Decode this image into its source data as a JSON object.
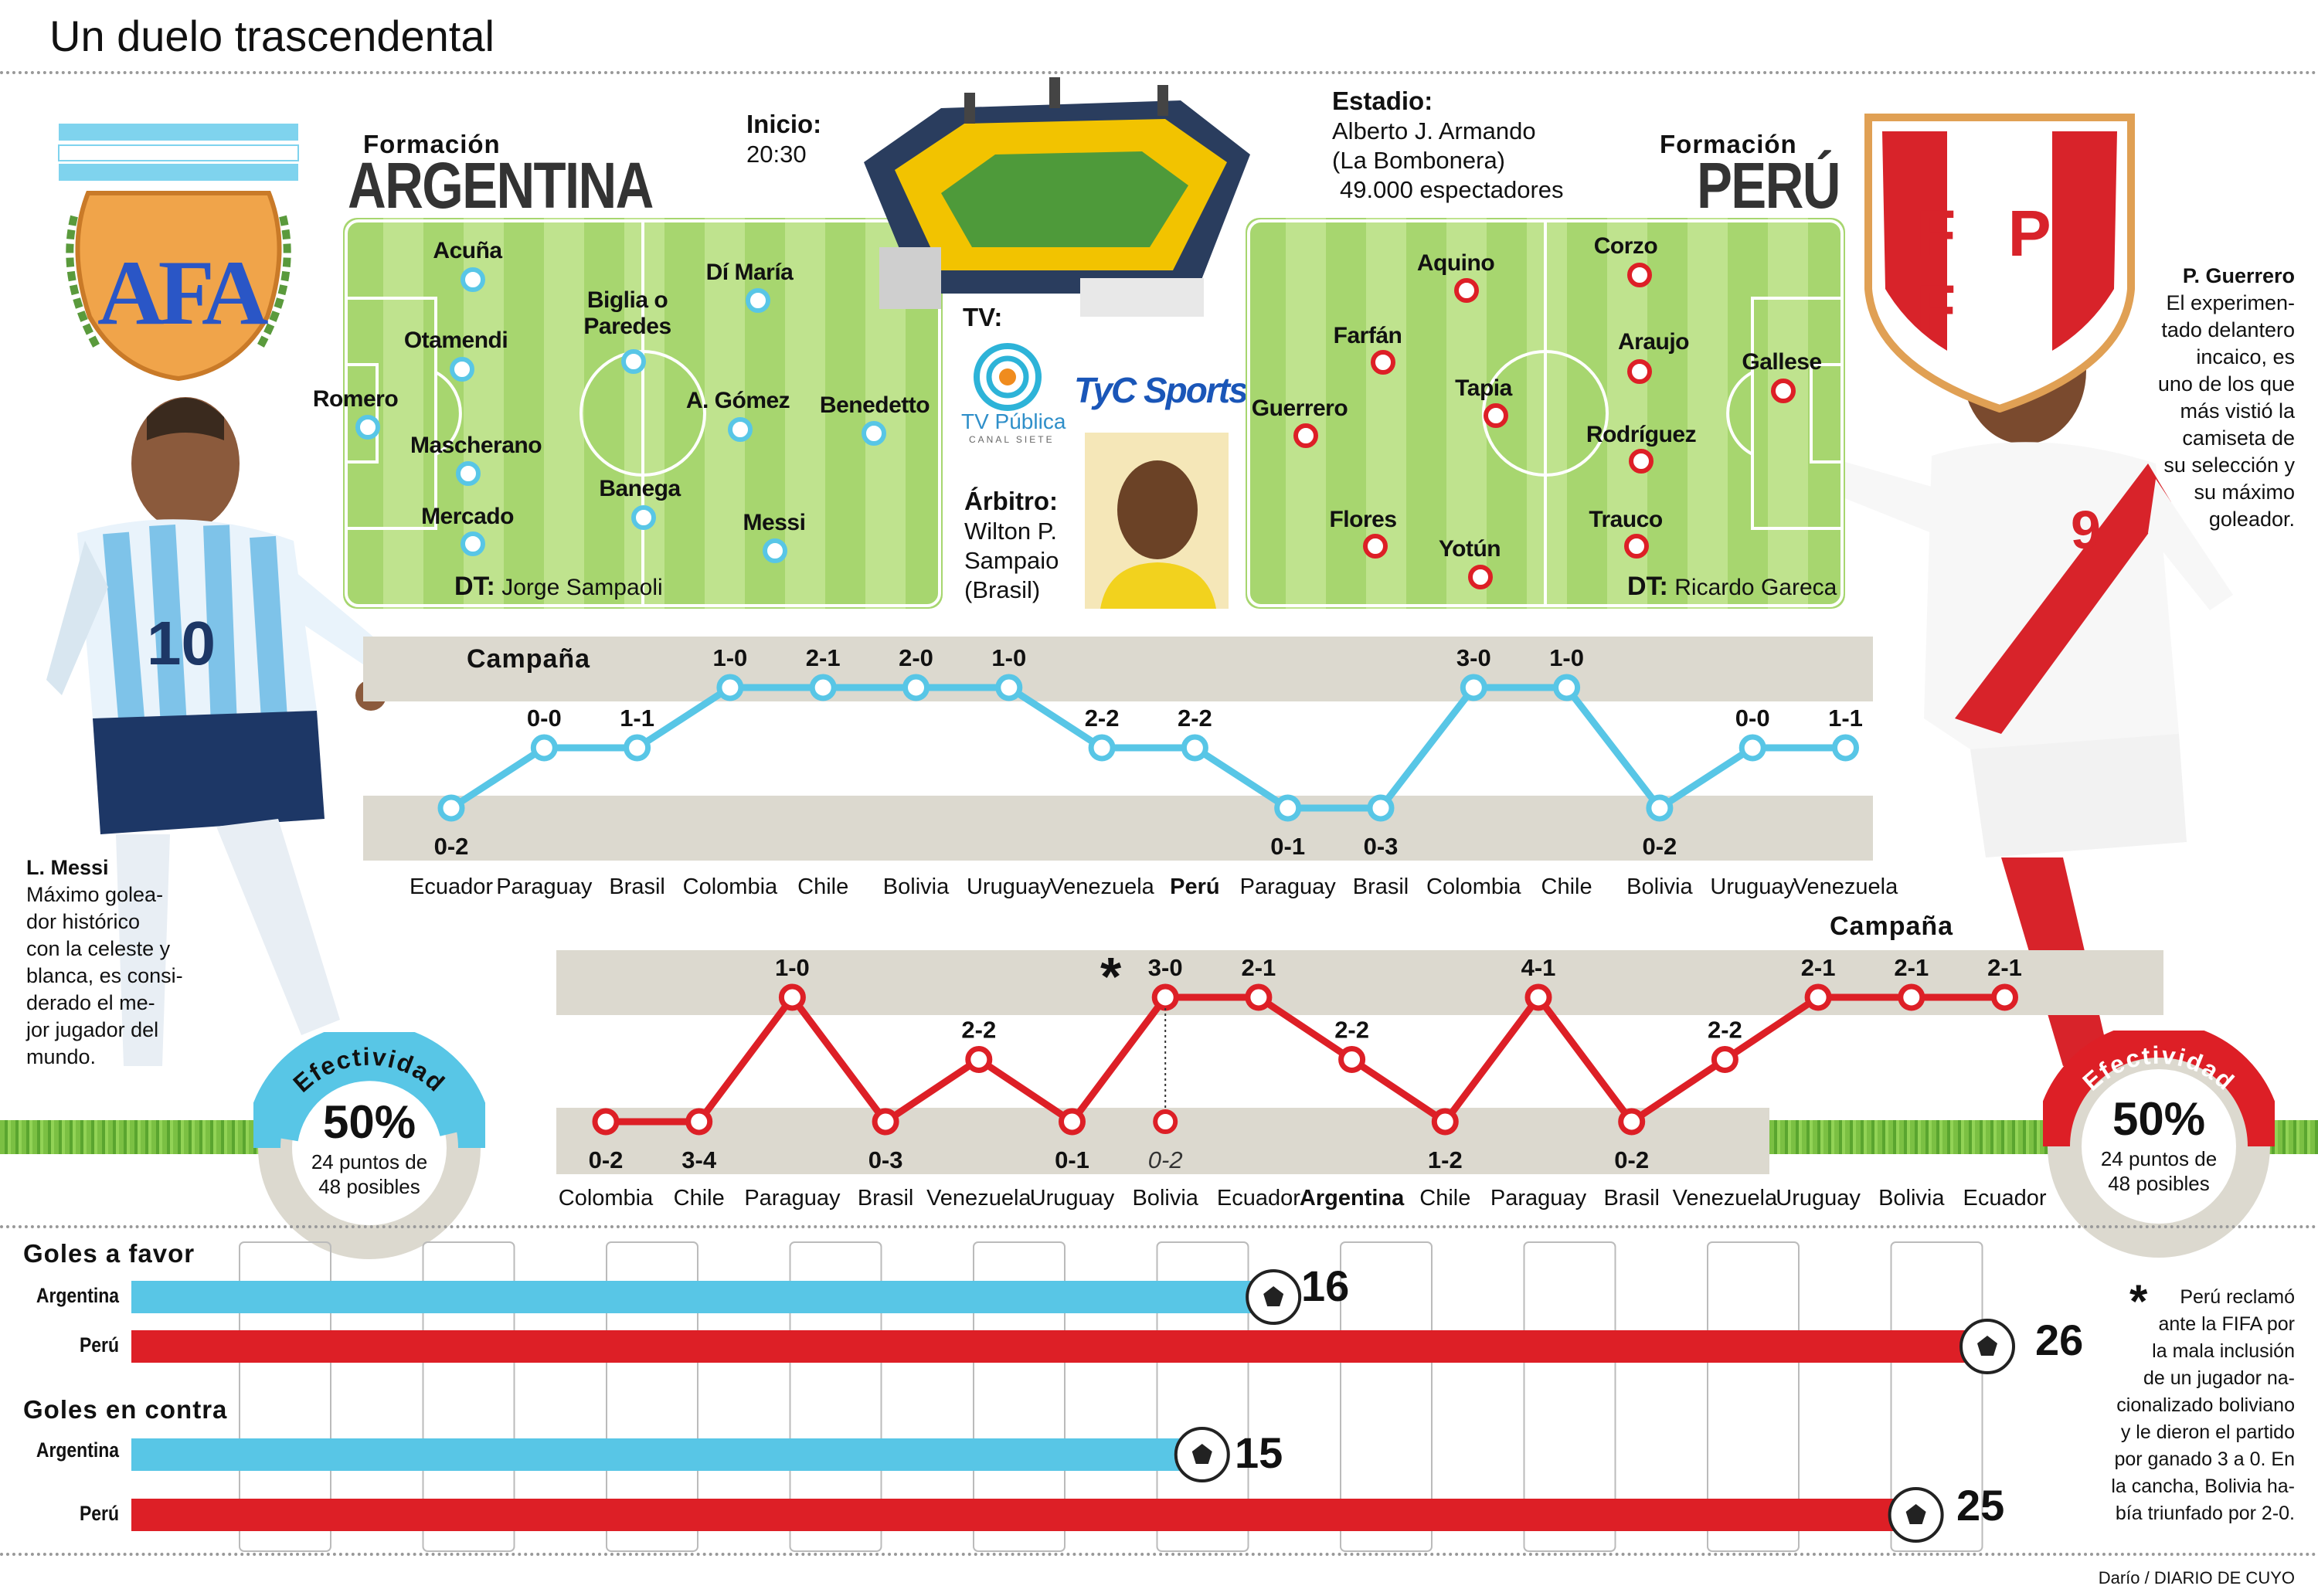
{
  "title": "Un duelo trascendental",
  "argentina": {
    "formation_label": "Formación",
    "team_name": "ARGENTINA",
    "logo_text": "AFA",
    "players": [
      "Acuña",
      "Otamendi",
      "Romero",
      "Mascherano",
      "Mercado",
      "Biglia o Paredes",
      "Banega",
      "Dí María",
      "A. Gómez",
      "Messi",
      "Benedetto"
    ],
    "dt_label": "DT:",
    "dt_name": "Jorge Sampaoli",
    "star_name": "L. Messi",
    "star_note": [
      "Máximo golea-",
      "dor histórico",
      "con la celeste y",
      "blanca, es consi-",
      "derado el me-",
      "jor jugador del",
      "mundo."
    ]
  },
  "peru": {
    "formation_label": "Formación",
    "team_name": "PERÚ",
    "logo_text": "F P F",
    "players": [
      "Corzo",
      "Aquino",
      "Farfán",
      "Araujo",
      "Gallese",
      "Guerrero",
      "Tapia",
      "Rodríguez",
      "Flores",
      "Trauco",
      "Yotún"
    ],
    "dt_label": "DT:",
    "dt_name": "Ricardo Gareca",
    "star_name": "P. Guerrero",
    "star_note": [
      "El experimen-",
      "tado delantero",
      "incaico, es",
      "uno de los que",
      "más vistió la",
      "camiseta de",
      "su selección y",
      "su máximo",
      "goleador."
    ]
  },
  "match": {
    "start_label": "Inicio:",
    "start_time": "20:30",
    "stadium_label": "Estadio:",
    "stadium_lines": [
      "Alberto J. Armando",
      "(La Bombonera)",
      "49.000 espectadores"
    ],
    "tv_label": "TV:",
    "tv_channels": [
      "TV Pública",
      "CANAL SIETE",
      "TyC Sports"
    ],
    "referee_label": "Árbitro:",
    "referee_lines": [
      "Wilton P.",
      "Sampaio",
      "(Brasil)"
    ]
  },
  "chart_data": [
    {
      "type": "line",
      "title": "Campaña",
      "team": "Argentina",
      "categories": [
        "Ecuador",
        "Paraguay",
        "Brasil",
        "Colombia",
        "Chile",
        "Bolivia",
        "Uruguay",
        "Venezuela",
        "Perú",
        "Paraguay",
        "Brasil",
        "Colombia",
        "Chile",
        "Bolivia",
        "Uruguay",
        "Venezuela"
      ],
      "results": [
        "0-2",
        "0-0",
        "1-1",
        "1-0",
        "2-1",
        "2-0",
        "1-0",
        "2-2",
        "2-2",
        "0-1",
        "0-3",
        "3-0",
        "1-0",
        "0-2",
        "0-0",
        "1-1"
      ],
      "outcome_level": [
        0,
        1,
        1,
        2,
        2,
        2,
        2,
        1,
        1,
        0,
        0,
        2,
        2,
        0,
        1,
        1
      ],
      "levels": {
        "0": "derrota",
        "1": "empate",
        "2": "victoria"
      },
      "highlight_category": "Perú",
      "color": "#58c6e6"
    },
    {
      "type": "line",
      "title": "Campaña",
      "team": "Perú",
      "categories": [
        "Colombia",
        "Chile",
        "Paraguay",
        "Brasil",
        "Venezuela",
        "Uruguay",
        "Bolivia",
        "Ecuador",
        "Argentina",
        "Chile",
        "Paraguay",
        "Brasil",
        "Venezuela",
        "Uruguay",
        "Bolivia",
        "Ecuador"
      ],
      "results": [
        "0-2",
        "3-4",
        "1-0",
        "0-3",
        "2-2",
        "0-1",
        "3-0",
        "2-1",
        "2-2",
        "1-2",
        "4-1",
        "0-2",
        "2-2",
        "2-1",
        "2-1",
        "2-1"
      ],
      "outcome_level": [
        0,
        0,
        2,
        0,
        1,
        0,
        2,
        2,
        1,
        0,
        2,
        0,
        1,
        2,
        2,
        2
      ],
      "original_result": {
        "index": 6,
        "result": "0-2"
      },
      "levels": {
        "0": "derrota",
        "1": "empate",
        "2": "victoria"
      },
      "highlight_category": "Argentina",
      "color": "#dd1f26"
    },
    {
      "type": "bar",
      "orientation": "horizontal",
      "groups": [
        {
          "label": "Goles a favor",
          "bars": [
            {
              "team": "Argentina",
              "value": 16
            },
            {
              "team": "Perú",
              "value": 26
            }
          ]
        },
        {
          "label": "Goles en contra",
          "bars": [
            {
              "team": "Argentina",
              "value": 15
            },
            {
              "team": "Perú",
              "value": 25
            }
          ]
        }
      ],
      "xlim": [
        0,
        26
      ]
    }
  ],
  "efectividad": {
    "label": "Efectividad",
    "argentina": {
      "pct": "50%",
      "line1": "24 puntos de",
      "line2": "48 posibles"
    },
    "peru": {
      "pct": "50%",
      "line1": "24 puntos de",
      "line2": "48 posibles"
    }
  },
  "footnote": {
    "mark": "*",
    "lines": [
      "Perú reclamó",
      "ante la FIFA por",
      "la mala inclusión",
      "de un jugador na-",
      "cionalizado boliviano",
      "y le dieron el partido",
      "por ganado 3 a 0. En",
      "la cancha, Bolivia ha-",
      "bía triunfado por 2-0."
    ]
  },
  "credit": "Darío / DIARIO DE CUYO",
  "colors": {
    "argentina": "#58c6e6",
    "peru": "#dd1f26",
    "band": "#dcd9cf",
    "pitch": "#a7d66f"
  }
}
